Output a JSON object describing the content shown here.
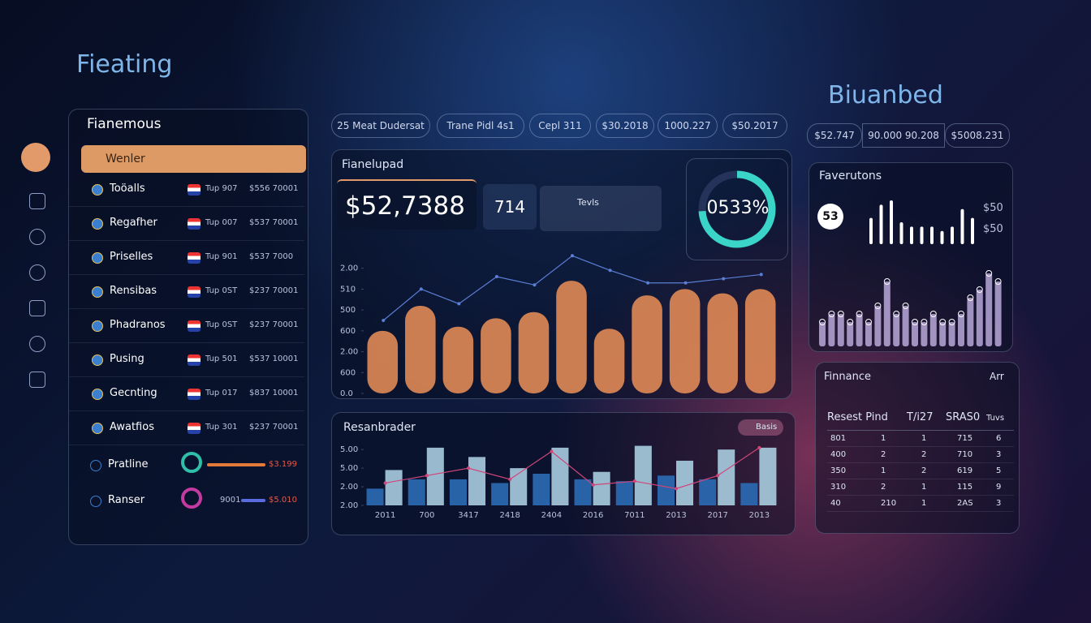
{
  "header": {
    "left_title": "Fieating",
    "right_title": "Biuanbed"
  },
  "list_panel": {
    "title": "Fianemous",
    "selected": "Wenler",
    "rows": [
      {
        "name": "Toöalls",
        "code": "Tup 907",
        "value": "$556 70001"
      },
      {
        "name": "Regafher",
        "code": "Tup 007",
        "value": "$537 70001"
      },
      {
        "name": "Priselles",
        "code": "Tup 901",
        "value": "$537 7000"
      },
      {
        "name": "Rensibas",
        "code": "Tup 0ST",
        "value": "$237 70001"
      },
      {
        "name": "Phadranos",
        "code": "Tup 0ST",
        "value": "$237 70001"
      },
      {
        "name": "Pusing",
        "code": "Tup 501",
        "value": "$537 10001"
      },
      {
        "name": "Gecnting",
        "code": "Tup 017",
        "value": "$837 10001"
      },
      {
        "name": "Awatfios",
        "code": "Tup 301",
        "value": "$237 70001"
      }
    ],
    "progress": [
      {
        "name": "Pratline",
        "value": "$3.199"
      },
      {
        "name": "Ranser",
        "code": "9001",
        "value": "$5.010"
      }
    ]
  },
  "chips": [
    "25 Meat Dudersat",
    "Trane Pidl 4s1",
    "Cepl 311",
    "$30.2018",
    "1000.227",
    "$50.2017"
  ],
  "right_chips": [
    "$52.747",
    "90.000 90.208",
    "$5008.231"
  ],
  "main_panel": {
    "title": "Fianelupad",
    "kpi": "$52,7388",
    "kpi2": "714",
    "tile_label": "Tevls",
    "gauge_label": "0533%",
    "chart": {
      "type": "bar",
      "ylim": [
        0,
        7
      ],
      "yticks": [
        {
          "value": 0,
          "label": "0.0"
        },
        {
          "value": 1,
          "label": "600"
        },
        {
          "value": 2,
          "label": "2.00"
        },
        {
          "value": 3,
          "label": "600"
        },
        {
          "value": 4,
          "label": "500"
        },
        {
          "value": 5,
          "label": "510"
        },
        {
          "value": 6,
          "label": "2.00"
        }
      ],
      "bars": {
        "color": "#e08a55",
        "values": [
          3.0,
          4.2,
          3.2,
          3.6,
          3.9,
          5.4,
          3.1,
          4.7,
          5.0,
          4.8,
          5.0
        ]
      },
      "line": {
        "color": "#5b7fd6",
        "values": [
          3.5,
          5.0,
          4.3,
          5.6,
          5.2,
          6.6,
          5.9,
          5.3,
          5.3,
          5.5,
          5.7
        ]
      }
    }
  },
  "bottom_panel": {
    "title": "Resanbrader",
    "legend": "Basis",
    "chart": {
      "type": "bar",
      "ylim": [
        0,
        3.4
      ],
      "yticks": [
        {
          "value": 0,
          "label": "2.00"
        },
        {
          "value": 1,
          "label": "2.00"
        },
        {
          "value": 2,
          "label": "5.00"
        },
        {
          "value": 3,
          "label": "5.00"
        }
      ],
      "categories": [
        "2011",
        "700",
        "3417",
        "2418",
        "2404",
        "2016",
        "7011",
        "2013",
        "2017",
        "2013"
      ],
      "series": [
        {
          "color": "#2b6cb5",
          "values": [
            0.9,
            1.4,
            1.4,
            1.2,
            1.7,
            1.4,
            1.3,
            1.6,
            1.4,
            1.2
          ]
        },
        {
          "color": "#a8cde0",
          "values": [
            1.9,
            3.1,
            2.6,
            2.0,
            3.1,
            1.8,
            3.2,
            2.4,
            3.0,
            3.1
          ]
        }
      ],
      "line": {
        "color": "#d0457a",
        "values": [
          1.2,
          1.6,
          2.0,
          1.4,
          2.9,
          1.1,
          1.3,
          0.9,
          1.6,
          3.1
        ]
      }
    }
  },
  "favorites": {
    "title": "Faverutons",
    "badge": "53",
    "labels": [
      "$50",
      "$50"
    ],
    "ylim": [
      0,
      10
    ],
    "bars": {
      "color": "#ffffff",
      "values": [
        6,
        9,
        10,
        5,
        4,
        4,
        4,
        3,
        4,
        8,
        6
      ]
    },
    "bars2": {
      "color": "#b9a8d8",
      "values": [
        3,
        4,
        4,
        3,
        4,
        3,
        5,
        8,
        4,
        5,
        3,
        3,
        4,
        3,
        3,
        4,
        6,
        7,
        9,
        8
      ]
    }
  },
  "finance": {
    "title": "Finnance",
    "corner": "Arr",
    "header": [
      "Resest Pind",
      "T/i27",
      "SRAS0",
      "Tuvs"
    ],
    "rows": [
      [
        "801",
        "1",
        "1",
        "715",
        "6"
      ],
      [
        "400",
        "2",
        "2",
        "710",
        "3"
      ],
      [
        "350",
        "1",
        "2",
        "619",
        "5"
      ],
      [
        "310",
        "2",
        "1",
        "115",
        "9"
      ],
      [
        "40",
        "210",
        "1",
        "2AS",
        "3"
      ]
    ]
  }
}
